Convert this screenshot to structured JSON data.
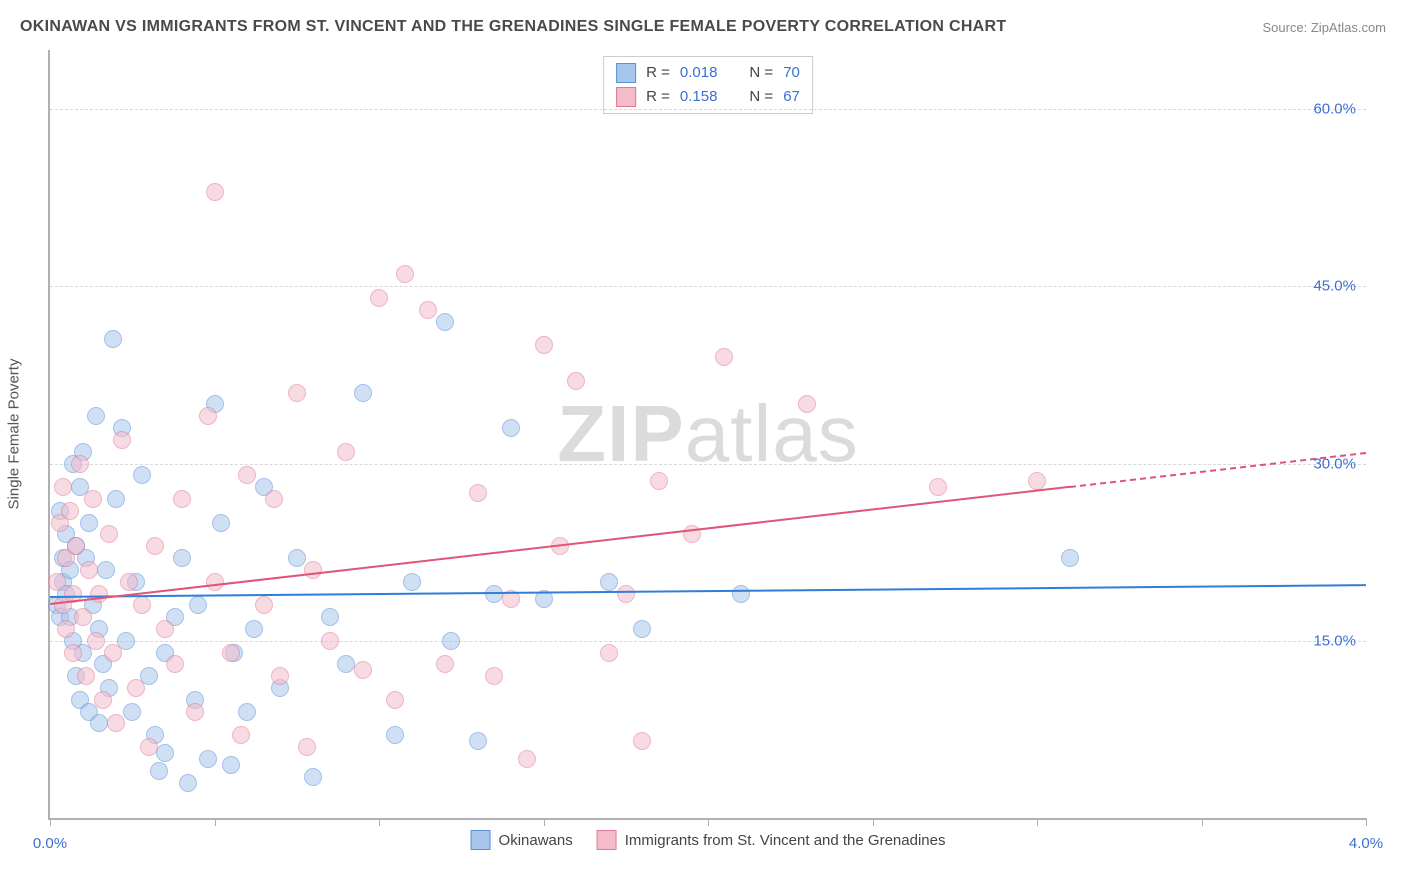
{
  "title": "OKINAWAN VS IMMIGRANTS FROM ST. VINCENT AND THE GRENADINES SINGLE FEMALE POVERTY CORRELATION CHART",
  "source": "Source: ZipAtlas.com",
  "watermark_bold": "ZIP",
  "watermark_rest": "atlas",
  "y_axis_label": "Single Female Poverty",
  "chart": {
    "type": "scatter",
    "background_color": "#ffffff",
    "grid_color": "#d8d8d8",
    "axis_color": "#b0b0b0",
    "tick_label_color": "#3b6fd6",
    "tick_fontsize": 15,
    "xlim": [
      0.0,
      4.0
    ],
    "ylim": [
      0.0,
      65.0
    ],
    "y_ticks": [
      15.0,
      30.0,
      45.0,
      60.0
    ],
    "y_tick_labels": [
      "15.0%",
      "30.0%",
      "45.0%",
      "60.0%"
    ],
    "x_tick_positions": [
      0.0,
      0.5,
      1.0,
      1.5,
      2.0,
      2.5,
      3.0,
      3.5,
      4.0
    ],
    "x_tick_labels": {
      "0.0": "0.0%",
      "4.0": "4.0%"
    },
    "marker_radius": 8,
    "marker_opacity": 0.55,
    "marker_stroke_width": 1
  },
  "series": [
    {
      "id": "okinawans",
      "label": "Okinawans",
      "R": "0.018",
      "N": "70",
      "fill_color": "#a8c6ec",
      "stroke_color": "#5b8fd6",
      "line_color": "#2f7ed8",
      "trend": {
        "x0": 0.0,
        "y0": 18.8,
        "x1": 4.0,
        "y1": 19.8,
        "dashed_from_x": null
      },
      "points": [
        [
          0.02,
          18
        ],
        [
          0.03,
          26
        ],
        [
          0.03,
          17
        ],
        [
          0.04,
          22
        ],
        [
          0.04,
          20
        ],
        [
          0.05,
          24
        ],
        [
          0.05,
          19
        ],
        [
          0.06,
          21
        ],
        [
          0.06,
          17
        ],
        [
          0.07,
          30
        ],
        [
          0.07,
          15
        ],
        [
          0.08,
          23
        ],
        [
          0.08,
          12
        ],
        [
          0.09,
          28
        ],
        [
          0.09,
          10
        ],
        [
          0.1,
          31
        ],
        [
          0.1,
          14
        ],
        [
          0.11,
          22
        ],
        [
          0.12,
          25
        ],
        [
          0.12,
          9
        ],
        [
          0.13,
          18
        ],
        [
          0.14,
          34
        ],
        [
          0.15,
          16
        ],
        [
          0.15,
          8
        ],
        [
          0.16,
          13
        ],
        [
          0.17,
          21
        ],
        [
          0.18,
          11
        ],
        [
          0.19,
          40.5
        ],
        [
          0.2,
          27
        ],
        [
          0.22,
          33
        ],
        [
          0.23,
          15
        ],
        [
          0.25,
          9
        ],
        [
          0.26,
          20
        ],
        [
          0.28,
          29
        ],
        [
          0.3,
          12
        ],
        [
          0.32,
          7
        ],
        [
          0.33,
          4
        ],
        [
          0.35,
          14
        ],
        [
          0.38,
          17
        ],
        [
          0.4,
          22
        ],
        [
          0.42,
          3
        ],
        [
          0.44,
          10
        ],
        [
          0.45,
          18
        ],
        [
          0.48,
          5
        ],
        [
          0.5,
          35
        ],
        [
          0.52,
          25
        ],
        [
          0.55,
          4.5
        ],
        [
          0.56,
          14
        ],
        [
          0.6,
          9
        ],
        [
          0.62,
          16
        ],
        [
          0.65,
          28
        ],
        [
          0.7,
          11
        ],
        [
          0.75,
          22
        ],
        [
          0.8,
          3.5
        ],
        [
          0.85,
          17
        ],
        [
          0.9,
          13
        ],
        [
          0.95,
          36
        ],
        [
          1.05,
          7
        ],
        [
          1.1,
          20
        ],
        [
          1.2,
          42
        ],
        [
          1.22,
          15
        ],
        [
          1.3,
          6.5
        ],
        [
          1.35,
          19
        ],
        [
          1.4,
          33
        ],
        [
          1.5,
          18.5
        ],
        [
          1.7,
          20
        ],
        [
          1.8,
          16
        ],
        [
          2.1,
          19
        ],
        [
          3.1,
          22
        ],
        [
          0.35,
          5.5
        ]
      ]
    },
    {
      "id": "svg_immigrants",
      "label": "Immigrants from St. Vincent and the Grenadines",
      "R": "0.158",
      "N": "67",
      "fill_color": "#f4bccb",
      "stroke_color": "#e07a94",
      "line_color": "#e05577",
      "trend": {
        "x0": 0.0,
        "y0": 18.2,
        "x1": 4.0,
        "y1": 31.0,
        "dashed_from_x": 3.1
      },
      "points": [
        [
          0.02,
          20
        ],
        [
          0.03,
          25
        ],
        [
          0.04,
          28
        ],
        [
          0.04,
          18
        ],
        [
          0.05,
          22
        ],
        [
          0.05,
          16
        ],
        [
          0.06,
          26
        ],
        [
          0.07,
          19
        ],
        [
          0.07,
          14
        ],
        [
          0.08,
          23
        ],
        [
          0.09,
          30
        ],
        [
          0.1,
          17
        ],
        [
          0.11,
          12
        ],
        [
          0.12,
          21
        ],
        [
          0.13,
          27
        ],
        [
          0.14,
          15
        ],
        [
          0.15,
          19
        ],
        [
          0.16,
          10
        ],
        [
          0.18,
          24
        ],
        [
          0.19,
          14
        ],
        [
          0.2,
          8
        ],
        [
          0.22,
          32
        ],
        [
          0.24,
          20
        ],
        [
          0.26,
          11
        ],
        [
          0.28,
          18
        ],
        [
          0.3,
          6
        ],
        [
          0.32,
          23
        ],
        [
          0.35,
          16
        ],
        [
          0.38,
          13
        ],
        [
          0.4,
          27
        ],
        [
          0.44,
          9
        ],
        [
          0.48,
          34
        ],
        [
          0.5,
          20
        ],
        [
          0.5,
          53
        ],
        [
          0.55,
          14
        ],
        [
          0.58,
          7
        ],
        [
          0.6,
          29
        ],
        [
          0.65,
          18
        ],
        [
          0.68,
          27
        ],
        [
          0.7,
          12
        ],
        [
          0.75,
          36
        ],
        [
          0.78,
          6
        ],
        [
          0.8,
          21
        ],
        [
          0.85,
          15
        ],
        [
          0.9,
          31
        ],
        [
          0.95,
          12.5
        ],
        [
          1.0,
          44
        ],
        [
          1.05,
          10
        ],
        [
          1.08,
          46
        ],
        [
          1.15,
          43
        ],
        [
          1.2,
          13
        ],
        [
          1.3,
          27.5
        ],
        [
          1.35,
          12
        ],
        [
          1.4,
          18.5
        ],
        [
          1.45,
          5
        ],
        [
          1.5,
          40
        ],
        [
          1.55,
          23
        ],
        [
          1.6,
          37
        ],
        [
          1.7,
          14
        ],
        [
          1.75,
          19
        ],
        [
          1.8,
          6.5
        ],
        [
          1.85,
          28.5
        ],
        [
          1.95,
          24
        ],
        [
          2.05,
          39
        ],
        [
          2.3,
          35
        ],
        [
          2.7,
          28
        ],
        [
          3.0,
          28.5
        ]
      ]
    }
  ],
  "legend_top": {
    "R_label": "R =",
    "N_label": "N ="
  }
}
